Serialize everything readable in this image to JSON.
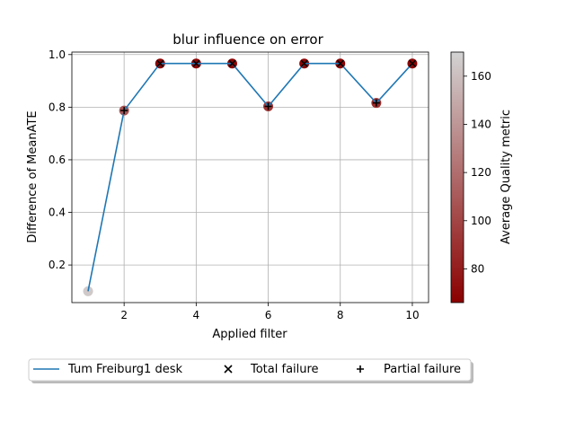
{
  "chart_data": {
    "type": "line",
    "title": "blur influence on error",
    "xlabel": "Applied filter",
    "ylabel": "Difference of MeanATE",
    "xlim": [
      0.55,
      10.45
    ],
    "ylim": [
      0.057,
      1.0095
    ],
    "xticks": [
      2,
      4,
      6,
      8,
      10
    ],
    "yticks": [
      0.2,
      0.4,
      0.6,
      0.8,
      1.0
    ],
    "xtick_labels": [
      "2",
      "4",
      "6",
      "8",
      "10"
    ],
    "ytick_labels": [
      "0.2",
      "0.4",
      "0.6",
      "0.8",
      "1.0"
    ],
    "grid": true,
    "line_color": "#1f77b4",
    "series": [
      {
        "name": "Tum Freiburg1 desk",
        "x": [
          1,
          2,
          3,
          4,
          5,
          6,
          7,
          8,
          9,
          10
        ],
        "y": [
          0.1,
          0.787,
          0.966,
          0.966,
          0.966,
          0.803,
          0.966,
          0.966,
          0.816,
          0.966
        ],
        "quality": [
          165,
          108,
          68,
          68,
          68,
          92,
          68,
          68,
          88,
          68
        ]
      }
    ],
    "markers": {
      "total_failure_x": [
        3,
        4,
        5,
        7,
        8,
        10
      ],
      "partial_failure_x": [
        2,
        6,
        9
      ]
    },
    "colorbar": {
      "label": "Average Quality metric",
      "range": [
        66,
        170
      ],
      "ticks": [
        80,
        100,
        120,
        140,
        160
      ],
      "tick_labels": [
        "80",
        "100",
        "120",
        "140",
        "160"
      ],
      "color_low": "#8b0000",
      "color_high": "#d3d3d3"
    },
    "legend": {
      "placement": "bottom",
      "entries": [
        "Tum Freiburg1 desk",
        "Total failure",
        "Partial failure"
      ]
    }
  }
}
